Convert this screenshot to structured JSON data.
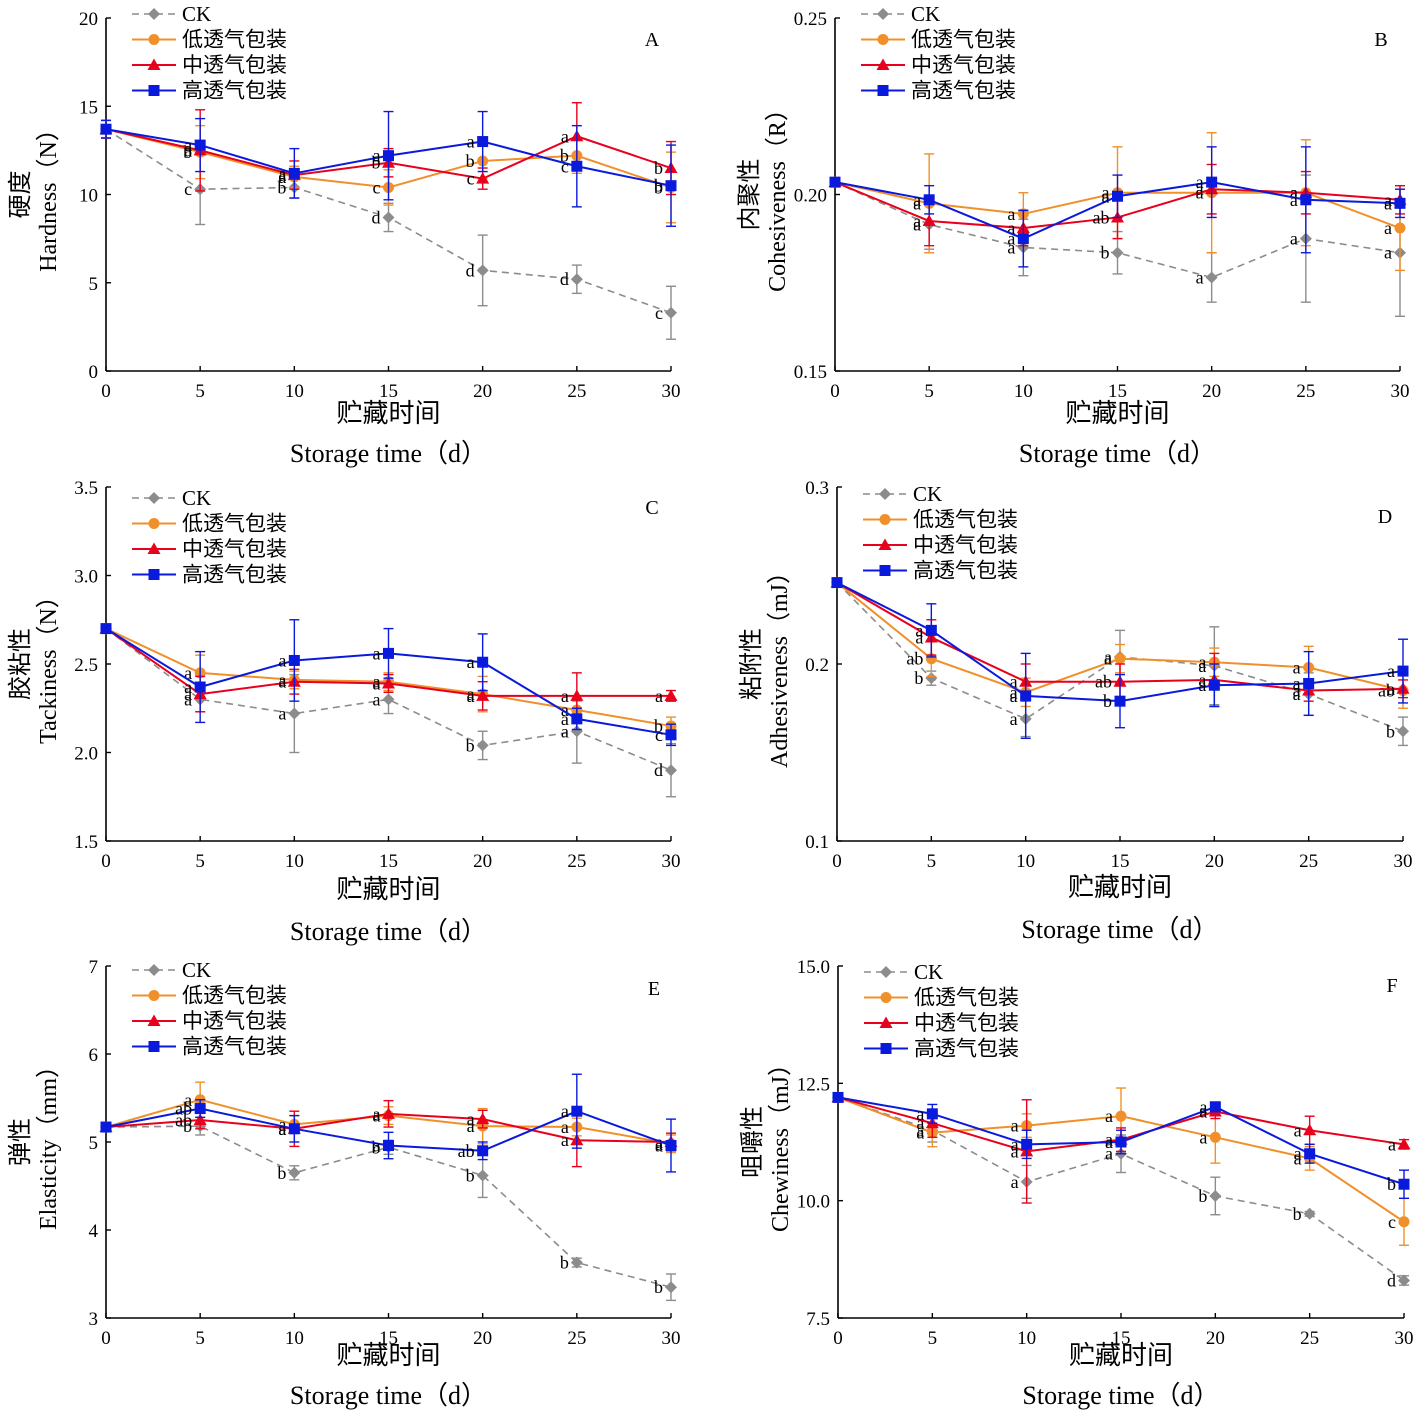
{
  "legend": [
    "CK",
    "低透气包装",
    "中透气包装",
    "高透气包装"
  ],
  "series_colors": [
    "#8c8c8c",
    "#f0902a",
    "#e8001c",
    "#0a1adc"
  ],
  "x_label_cn": "贮藏时间",
  "x_label_en": "Storage time（d）",
  "chart_data": [
    {
      "type": "line",
      "panel": "A",
      "ylabel_cn": "硬度",
      "ylabel_en": "Hardness（N）",
      "x": [
        0,
        5,
        10,
        15,
        20,
        25,
        30
      ],
      "xlim": [
        0,
        30
      ],
      "ylim": [
        0,
        20
      ],
      "yticks": [
        "0",
        "5",
        "10",
        "15",
        "20"
      ],
      "series": [
        {
          "name": "CK",
          "values": [
            13.7,
            10.3,
            10.4,
            8.7,
            5.7,
            5.2,
            3.3
          ],
          "errors": [
            0.5,
            2.0,
            0.6,
            0.8,
            2.0,
            0.8,
            1.5
          ],
          "letters": [
            "",
            "c",
            "b",
            "d",
            "d",
            "d",
            "c"
          ]
        },
        {
          "name": "低透气包装",
          "values": [
            13.7,
            12.4,
            11.0,
            10.4,
            11.9,
            12.2,
            10.4
          ],
          "errors": [
            0.5,
            1.5,
            0.6,
            1.0,
            1.0,
            1.0,
            2.0
          ],
          "letters": [
            "",
            "b",
            "a",
            "c",
            "b",
            "b",
            "b"
          ]
        },
        {
          "name": "中透气包装",
          "values": [
            13.7,
            12.5,
            11.1,
            11.8,
            10.9,
            13.3,
            11.5
          ],
          "errors": [
            0.5,
            2.3,
            0.8,
            0.8,
            0.6,
            1.9,
            1.5
          ],
          "letters": [
            "",
            "a",
            "a",
            "b",
            "c",
            "a",
            "b"
          ]
        },
        {
          "name": "高透气包装",
          "values": [
            13.7,
            12.8,
            11.2,
            12.2,
            13.0,
            11.6,
            10.5
          ],
          "errors": [
            0.5,
            1.5,
            1.4,
            2.5,
            1.7,
            2.3,
            2.3
          ],
          "letters": [
            "",
            "a",
            "a",
            "a",
            "a",
            "c",
            "b"
          ]
        }
      ]
    },
    {
      "type": "line",
      "panel": "B",
      "ylabel_cn": "内聚性",
      "ylabel_en": "Cohesiveness（R）",
      "x": [
        0,
        5,
        10,
        15,
        20,
        25,
        30
      ],
      "xlim": [
        0,
        30
      ],
      "ylim": [
        0.15,
        0.25
      ],
      "yticks": [
        "0.15",
        "0.20",
        "0.25"
      ],
      "series": [
        {
          "name": "CK",
          "values": [
            0.2035,
            0.1915,
            0.185,
            0.1835,
            0.1765,
            0.1875,
            0.1835
          ],
          "errors": [
            0.001,
            0.007,
            0.008,
            0.006,
            0.007,
            0.018,
            0.018
          ],
          "letters": [
            "",
            "a",
            "a",
            "b",
            "a",
            "a",
            "a"
          ]
        },
        {
          "name": "低透气包装",
          "values": [
            0.2035,
            0.1975,
            0.1945,
            0.2005,
            0.2005,
            0.2005,
            0.1905
          ],
          "errors": [
            0.001,
            0.014,
            0.006,
            0.013,
            0.017,
            0.015,
            0.012
          ],
          "letters": [
            "",
            "a",
            "a",
            "a",
            "a",
            "a",
            "a"
          ]
        },
        {
          "name": "中透气包装",
          "values": [
            0.2035,
            0.1925,
            0.1905,
            0.1935,
            0.2015,
            0.2005,
            0.1985
          ],
          "errors": [
            0.001,
            0.007,
            0.005,
            0.006,
            0.007,
            0.006,
            0.004
          ],
          "letters": [
            "",
            "a",
            "a",
            "ab",
            "a",
            "a",
            "a"
          ]
        },
        {
          "name": "高透气包装",
          "values": [
            0.2035,
            0.1985,
            0.1875,
            0.1995,
            0.2035,
            0.1985,
            0.1975
          ],
          "errors": [
            0.001,
            0.004,
            0.008,
            0.006,
            0.01,
            0.015,
            0.004
          ],
          "letters": [
            "",
            "a",
            "a",
            "a",
            "a",
            "a",
            "a"
          ]
        }
      ]
    },
    {
      "type": "line",
      "panel": "C",
      "ylabel_cn": "胶粘性",
      "ylabel_en": "Tackiness（N）",
      "x": [
        0,
        5,
        10,
        15,
        20,
        25,
        30
      ],
      "xlim": [
        0,
        30
      ],
      "ylim": [
        1.5,
        3.5
      ],
      "yticks": [
        "1.5",
        "2.0",
        "2.5",
        "3.0",
        "3.5"
      ],
      "series": [
        {
          "name": "CK",
          "values": [
            2.7,
            2.3,
            2.22,
            2.3,
            2.04,
            2.12,
            1.9
          ],
          "errors": [
            0.02,
            0.07,
            0.22,
            0.08,
            0.08,
            0.18,
            0.15
          ],
          "letters": [
            "",
            "a",
            "a",
            "a",
            "b",
            "a",
            "d"
          ]
        },
        {
          "name": "低透气包装",
          "values": [
            2.7,
            2.45,
            2.41,
            2.4,
            2.33,
            2.24,
            2.15
          ],
          "errors": [
            0.02,
            0.1,
            0.05,
            0.05,
            0.1,
            0.05,
            0.05
          ],
          "letters": [
            "",
            "a",
            "a",
            "a",
            "a",
            "a",
            "b"
          ]
        },
        {
          "name": "中透气包装",
          "values": [
            2.7,
            2.33,
            2.4,
            2.39,
            2.32,
            2.32,
            2.32
          ],
          "errors": [
            0.02,
            0.1,
            0.07,
            0.05,
            0.08,
            0.13,
            0.03
          ],
          "letters": [
            "",
            "a",
            "a",
            "a",
            "a",
            "a",
            "a"
          ]
        },
        {
          "name": "高透气包装",
          "values": [
            2.7,
            2.37,
            2.52,
            2.56,
            2.51,
            2.19,
            2.1
          ],
          "errors": [
            0.02,
            0.2,
            0.23,
            0.14,
            0.16,
            0.06,
            0.06
          ],
          "letters": [
            "",
            "a",
            "a",
            "a",
            "a",
            "a",
            "c"
          ]
        }
      ]
    },
    {
      "type": "line",
      "panel": "D",
      "ylabel_cn": "粘附性",
      "ylabel_en": "Adhesiveness（mJ）",
      "x": [
        0,
        5,
        10,
        15,
        20,
        25,
        30
      ],
      "xlim": [
        0,
        30
      ],
      "ylim": [
        0.1,
        0.3
      ],
      "yticks": [
        "0.1",
        "0.2",
        "0.3"
      ],
      "series": [
        {
          "name": "CK",
          "values": [
            0.246,
            0.192,
            0.169,
            0.204,
            0.199,
            0.183,
            0.162
          ],
          "errors": [
            0.002,
            0.004,
            0.01,
            0.015,
            0.022,
            0.012,
            0.008
          ],
          "letters": [
            "",
            "b",
            "a",
            "a",
            "a",
            "a",
            "b"
          ]
        },
        {
          "name": "低透气包装",
          "values": [
            0.246,
            0.203,
            0.184,
            0.203,
            0.201,
            0.198,
            0.185
          ],
          "errors": [
            0.002,
            0.01,
            0.008,
            0.008,
            0.008,
            0.012,
            0.01
          ],
          "letters": [
            "",
            "ab",
            "a",
            "a",
            "a",
            "a",
            "ab"
          ]
        },
        {
          "name": "中透气包装",
          "values": [
            0.246,
            0.215,
            0.19,
            0.19,
            0.191,
            0.185,
            0.186
          ],
          "errors": [
            0.002,
            0.01,
            0.01,
            0.01,
            0.015,
            0.006,
            0.005
          ],
          "letters": [
            "",
            "a",
            "a",
            "ab",
            "a",
            "a",
            "a"
          ]
        },
        {
          "name": "高透气包装",
          "values": [
            0.246,
            0.219,
            0.182,
            0.179,
            0.188,
            0.189,
            0.196
          ],
          "errors": [
            0.002,
            0.015,
            0.024,
            0.015,
            0.012,
            0.018,
            0.018
          ],
          "letters": [
            "",
            "a",
            "a",
            "b",
            "a",
            "a",
            "a"
          ]
        }
      ]
    },
    {
      "type": "line",
      "panel": "E",
      "ylabel_cn": "弹性",
      "ylabel_en": "Elasticity（mm）",
      "x": [
        0,
        5,
        10,
        15,
        20,
        25,
        30
      ],
      "xlim": [
        0,
        30
      ],
      "ylim": [
        3,
        7
      ],
      "yticks": [
        "3",
        "4",
        "5",
        "6",
        "7"
      ],
      "series": [
        {
          "name": "CK",
          "values": [
            5.17,
            5.18,
            4.65,
            4.94,
            4.62,
            3.63,
            3.35
          ],
          "errors": [
            0.03,
            0.1,
            0.08,
            0.08,
            0.25,
            0.05,
            0.15
          ],
          "letters": [
            "",
            "b",
            "b",
            "b",
            "b",
            "b",
            "b"
          ]
        },
        {
          "name": "低透气包装",
          "values": [
            5.17,
            5.48,
            5.2,
            5.3,
            5.18,
            5.17,
            4.98
          ],
          "errors": [
            0.03,
            0.2,
            0.1,
            0.1,
            0.2,
            0.1,
            0.1
          ],
          "letters": [
            "",
            "a",
            "a",
            "a",
            "a",
            "a",
            "a"
          ]
        },
        {
          "name": "中透气包装",
          "values": [
            5.17,
            5.25,
            5.15,
            5.32,
            5.26,
            5.02,
            5.0
          ],
          "errors": [
            0.03,
            0.1,
            0.2,
            0.15,
            0.1,
            0.3,
            0.1
          ],
          "letters": [
            "",
            "ab",
            "a",
            "a",
            "a",
            "a",
            "a"
          ]
        },
        {
          "name": "高透气包装",
          "values": [
            5.17,
            5.38,
            5.15,
            4.96,
            4.9,
            5.35,
            4.96
          ],
          "errors": [
            0.03,
            0.1,
            0.15,
            0.15,
            0.1,
            0.42,
            0.3
          ],
          "letters": [
            "",
            "ab",
            "a",
            "a",
            "ab",
            "a",
            "a"
          ]
        }
      ]
    },
    {
      "type": "line",
      "panel": "F",
      "ylabel_cn": "咀嚼性",
      "ylabel_en": "Chewiness（mJ）",
      "x": [
        0,
        5,
        10,
        15,
        20,
        25,
        30
      ],
      "xlim": [
        0,
        30
      ],
      "ylim": [
        7.5,
        15.0
      ],
      "yticks": [
        "7.5",
        "10.0",
        "12.5",
        "15.0"
      ],
      "series": [
        {
          "name": "CK",
          "values": [
            12.2,
            11.5,
            10.4,
            11.0,
            10.1,
            9.72,
            8.3
          ],
          "errors": [
            0.05,
            0.25,
            0.35,
            0.4,
            0.4,
            0.05,
            0.1
          ],
          "letters": [
            "",
            "a",
            "a",
            "a",
            "b",
            "b",
            "d"
          ]
        },
        {
          "name": "低透气包装",
          "values": [
            12.2,
            11.45,
            11.6,
            11.8,
            11.35,
            10.9,
            9.55
          ],
          "errors": [
            0.05,
            0.3,
            0.25,
            0.6,
            0.55,
            0.25,
            0.5
          ],
          "letters": [
            "",
            "a",
            "a",
            "a",
            "a",
            "a",
            "c"
          ]
        },
        {
          "name": "中透气包装",
          "values": [
            12.2,
            11.65,
            11.05,
            11.3,
            11.9,
            11.5,
            11.2
          ],
          "errors": [
            0.05,
            0.3,
            1.1,
            0.25,
            0.15,
            0.3,
            0.1
          ],
          "letters": [
            "",
            "a",
            "a",
            "a",
            "a",
            "a",
            "a"
          ]
        },
        {
          "name": "高透气包装",
          "values": [
            12.2,
            11.85,
            11.2,
            11.25,
            12.0,
            11.0,
            10.35
          ],
          "errors": [
            0.05,
            0.2,
            0.3,
            0.25,
            0.1,
            0.2,
            0.3
          ],
          "letters": [
            "",
            "a",
            "a",
            "a",
            "a",
            "a",
            "b"
          ]
        }
      ]
    }
  ]
}
